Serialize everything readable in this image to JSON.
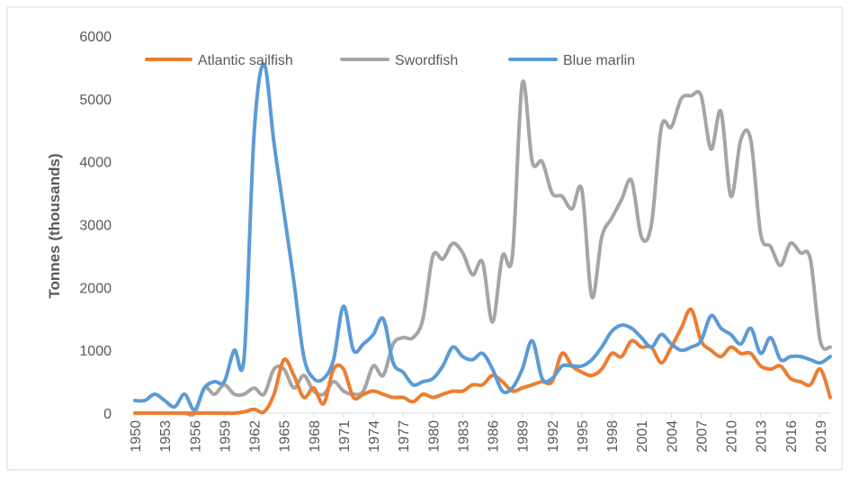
{
  "chart_data": {
    "type": "line",
    "title": "",
    "xlabel": "",
    "ylabel": "Tonnes (thousands)",
    "ylim": [
      0,
      6000
    ],
    "yticks": [
      0,
      1000,
      2000,
      3000,
      4000,
      5000,
      6000
    ],
    "ytick_labels": [
      "0",
      "1000",
      "2000",
      "3000",
      "4000",
      "5000",
      "6000"
    ],
    "xlim": [
      1950,
      2020
    ],
    "xticks": [
      1950,
      1953,
      1956,
      1959,
      1962,
      1965,
      1968,
      1971,
      1974,
      1977,
      1980,
      1983,
      1986,
      1989,
      1992,
      1995,
      1998,
      2001,
      2004,
      2007,
      2010,
      2013,
      2016,
      2019
    ],
    "xtick_labels": [
      "1950",
      "1953",
      "1956",
      "1959",
      "1962",
      "1965",
      "1968",
      "1971",
      "1974",
      "1977",
      "1980",
      "1983",
      "1986",
      "1989",
      "1992",
      "1995",
      "1998",
      "2001",
      "2004",
      "2007",
      "2010",
      "2013",
      "2016",
      "2019"
    ],
    "grid": false,
    "legend_position": "top",
    "x": [
      1950,
      1951,
      1952,
      1953,
      1954,
      1955,
      1956,
      1957,
      1958,
      1959,
      1960,
      1961,
      1962,
      1963,
      1964,
      1965,
      1966,
      1967,
      1968,
      1969,
      1970,
      1971,
      1972,
      1973,
      1974,
      1975,
      1976,
      1977,
      1978,
      1979,
      1980,
      1981,
      1982,
      1983,
      1984,
      1985,
      1986,
      1987,
      1988,
      1989,
      1990,
      1991,
      1992,
      1993,
      1994,
      1995,
      1996,
      1997,
      1998,
      1999,
      2000,
      2001,
      2002,
      2003,
      2004,
      2005,
      2006,
      2007,
      2008,
      2009,
      2010,
      2011,
      2012,
      2013,
      2014,
      2015,
      2016,
      2017,
      2018,
      2019,
      2020
    ],
    "series": [
      {
        "name": "Atlantic sailfish",
        "color": "#ED7D31",
        "values": [
          0,
          0,
          0,
          0,
          0,
          0,
          0,
          0,
          0,
          0,
          0,
          20,
          60,
          20,
          300,
          850,
          600,
          250,
          400,
          150,
          700,
          700,
          250,
          300,
          350,
          300,
          250,
          250,
          180,
          300,
          250,
          300,
          350,
          350,
          450,
          450,
          600,
          500,
          350,
          400,
          450,
          500,
          500,
          950,
          750,
          650,
          600,
          700,
          950,
          900,
          1150,
          1050,
          1050,
          800,
          1050,
          1350,
          1650,
          1150,
          1000,
          900,
          1050,
          950,
          950,
          750,
          700,
          750,
          550,
          500,
          450,
          700,
          250
        ]
      },
      {
        "name": "Swordfish",
        "color": "#A5A5A5",
        "values": [
          0,
          0,
          0,
          0,
          0,
          0,
          0,
          400,
          300,
          450,
          300,
          300,
          400,
          300,
          700,
          700,
          400,
          600,
          350,
          300,
          500,
          350,
          300,
          350,
          750,
          600,
          1100,
          1200,
          1200,
          1500,
          2500,
          2450,
          2700,
          2550,
          2200,
          2400,
          1450,
          2500,
          2500,
          5250,
          4000,
          4000,
          3500,
          3450,
          3250,
          3550,
          1850,
          2800,
          3100,
          3400,
          3700,
          2800,
          3000,
          4550,
          4550,
          5000,
          5050,
          5050,
          4200,
          4800,
          3450,
          4350,
          4350,
          2850,
          2650,
          2350,
          2700,
          2550,
          2450,
          1150,
          1050
        ]
      },
      {
        "name": "Blue marlin",
        "color": "#5B9BD5",
        "values": [
          200,
          200,
          300,
          200,
          100,
          300,
          50,
          400,
          500,
          500,
          1000,
          900,
          4450,
          5550,
          4300,
          3200,
          2100,
          900,
          550,
          550,
          850,
          1700,
          1000,
          1100,
          1250,
          1500,
          800,
          650,
          450,
          500,
          550,
          750,
          1050,
          900,
          850,
          950,
          700,
          350,
          400,
          700,
          1150,
          550,
          550,
          750,
          750,
          750,
          850,
          1050,
          1300,
          1400,
          1350,
          1200,
          1050,
          1250,
          1100,
          1000,
          1050,
          1150,
          1550,
          1350,
          1250,
          1100,
          1350,
          950,
          1200,
          850,
          900,
          900,
          850,
          800,
          900
        ]
      }
    ]
  }
}
